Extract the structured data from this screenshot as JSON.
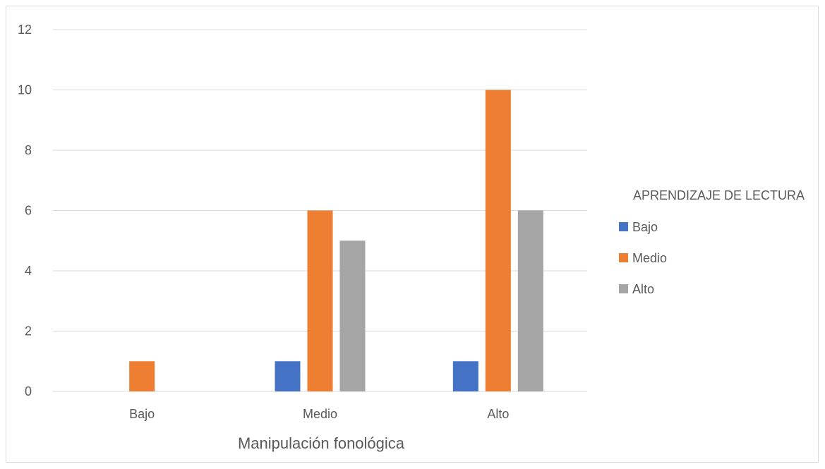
{
  "chart_data": {
    "type": "bar",
    "categories": [
      "Bajo",
      "Medio",
      "Alto"
    ],
    "series": [
      {
        "name": "Bajo",
        "values": [
          0,
          1,
          1
        ],
        "color": "#4472c4"
      },
      {
        "name": "Medio",
        "values": [
          1,
          6,
          10
        ],
        "color": "#ed7d31"
      },
      {
        "name": "Alto",
        "values": [
          0,
          5,
          6
        ],
        "color": "#a5a5a5"
      }
    ],
    "title": "",
    "xlabel": "Manipulación fonológica",
    "ylabel": "",
    "ylim": [
      0,
      12
    ],
    "yticks": [
      0,
      2,
      4,
      6,
      8,
      10,
      12
    ],
    "grid": true,
    "legend": {
      "title": "APRENDIZAJE DE LECTURA",
      "placement": "right"
    }
  }
}
